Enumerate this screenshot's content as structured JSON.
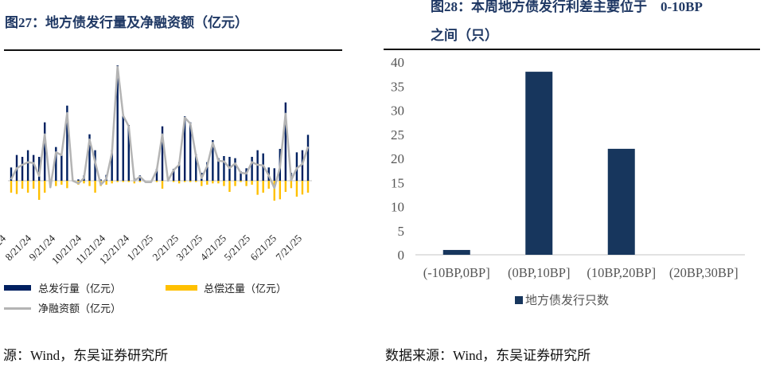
{
  "left": {
    "title": "图27：地方债发行量及净融资额（亿元）",
    "source": "源：Wind，东吴证券研究所",
    "colors": {
      "issuance": "#002060",
      "repayment": "#FFC000",
      "net": "#B4B4B4"
    }
  },
  "right": {
    "title_line1": "图28：本周地方债发行利差主要位于　0-10BP",
    "title_line2": "之间（只）",
    "source": "数据来源：Wind，东吴证券研究所",
    "colors": {
      "bar": "#17365D"
    }
  },
  "chart_data": [
    {
      "type": "bar",
      "title": "图27：地方债发行量及净融资额（亿元）",
      "x_tick_labels": [
        "24",
        "8/21/24",
        "9/21/24",
        "10/21/24",
        "11/21/24",
        "12/21/24",
        "1/21/25",
        "2/21/25",
        "3/21/25",
        "4/21/25",
        "5/21/25",
        "6/21/25",
        "7/21/25"
      ],
      "y_axis_labels_shown": false,
      "legend_placement": "bottom",
      "series": [
        {
          "name": "总发行量（亿元）",
          "kind": "bar",
          "values": [
            50,
            97,
            90,
            115,
            97,
            90,
            220,
            0,
            127,
            97,
            283,
            0,
            5,
            20,
            175,
            115,
            5,
            22,
            115,
            435,
            250,
            210,
            10,
            20,
            0,
            0,
            45,
            205,
            0,
            45,
            70,
            243,
            220,
            100,
            30,
            70,
            153,
            85,
            93,
            90,
            85,
            35,
            47,
            90,
            115,
            103,
            50,
            47,
            120,
            295,
            30,
            107,
            115,
            173
          ]
        },
        {
          "name": "总偿还量（亿元）",
          "kind": "bar",
          "values": [
            -45,
            -50,
            -30,
            -45,
            -30,
            -72,
            -45,
            -25,
            -20,
            -15,
            -28,
            0,
            -15,
            -10,
            -20,
            -45,
            -20,
            -15,
            -10,
            -5,
            -5,
            -5,
            -10,
            -5,
            0,
            0,
            -5,
            -30,
            0,
            -5,
            -10,
            -5,
            -5,
            -5,
            -20,
            -15,
            -10,
            -10,
            -20,
            -42,
            -20,
            -5,
            -20,
            -15,
            -53,
            -45,
            -30,
            -75,
            -70,
            -42,
            -28,
            -60,
            -52,
            -45
          ]
        },
        {
          "name": "净融资额（亿元）",
          "kind": "line",
          "values": [
            5,
            47,
            60,
            70,
            67,
            18,
            175,
            -25,
            107,
            97,
            255,
            0,
            -10,
            10,
            155,
            70,
            -15,
            7,
            105,
            430,
            245,
            205,
            0,
            15,
            -5,
            -5,
            40,
            175,
            0,
            40,
            60,
            238,
            215,
            95,
            10,
            55,
            143,
            75,
            73,
            48,
            65,
            30,
            27,
            70,
            60,
            58,
            20,
            -28,
            50,
            253,
            2,
            47,
            63,
            128
          ]
        }
      ]
    },
    {
      "type": "bar",
      "title": "图28：本周地方债发行利差主要位于 0-10BP之间（只）",
      "categories": [
        "(-10BP,0BP]",
        "(0BP,10BP]",
        "(10BP,20BP]",
        "(20BP,30BP]"
      ],
      "series": [
        {
          "name": "地方债发行只数",
          "values": [
            1,
            38,
            22,
            0
          ]
        }
      ],
      "ylim": [
        0,
        40
      ],
      "yticks": [
        0,
        5,
        10,
        15,
        20,
        25,
        30,
        35,
        40
      ],
      "legend_placement": "bottom",
      "grid": false
    }
  ]
}
